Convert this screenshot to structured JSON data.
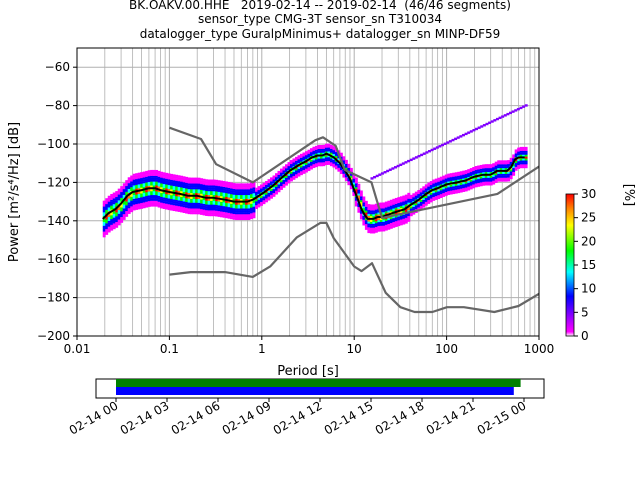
{
  "header": {
    "line1": "BK.OAKV.00.HHE   2019-02-14 -- 2019-02-14  (46/46 segments)",
    "line2": "sensor_type CMG-3T sensor_sn T310034",
    "line3": "datalogger_type GuralpMinimus+ datalogger_sn MINP-DF59"
  },
  "chart_data": {
    "type": "heatmap",
    "title": "BK.OAKV.00.HHE   2019-02-14 -- 2019-02-14  (46/46 segments)",
    "xlabel": "Period [s]",
    "ylabel": "Power [m²/s⁴/Hz] [dB]",
    "x_scale": "log",
    "xlim": [
      0.01,
      1000
    ],
    "ylim": [
      -200,
      -50
    ],
    "x_ticks": [
      0.01,
      0.1,
      1,
      10,
      100,
      1000
    ],
    "x_tick_labels": [
      "0.01",
      "0.1",
      "1",
      "10",
      "100",
      "1000"
    ],
    "y_ticks": [
      -200,
      -180,
      -160,
      -140,
      -120,
      -100,
      -80,
      -60
    ],
    "grid": true,
    "colorbar": {
      "label": "[%]",
      "min": 0,
      "max": 30,
      "ticks": [
        0,
        5,
        10,
        15,
        20,
        25,
        30
      ],
      "colormap": [
        "#ffffff",
        "#ff00ff",
        "#0000ff",
        "#00ffff",
        "#00ff00",
        "#ffff00",
        "#ff8000",
        "#ff0000"
      ]
    },
    "series": [
      {
        "kind": "mode",
        "color": "#000000",
        "x": [
          0.019,
          0.022,
          0.026,
          0.03,
          0.035,
          0.04,
          0.05,
          0.06,
          0.07,
          0.08,
          0.1,
          0.13,
          0.16,
          0.2,
          0.25,
          0.3,
          0.4,
          0.5,
          0.6,
          0.7,
          0.8,
          1.0,
          1.3,
          1.6,
          2.0,
          2.5,
          3.0,
          3.5,
          4.0,
          4.5,
          5.0,
          5.5,
          6.0,
          7.0,
          8.0,
          9.0,
          10,
          11,
          12,
          13,
          14,
          15,
          16,
          18,
          20,
          23,
          26,
          30,
          35,
          40,
          50,
          60,
          70,
          80,
          100,
          130,
          160,
          200,
          250,
          300,
          350,
          400,
          450,
          500,
          550,
          600,
          700
        ],
        "y": [
          -139,
          -136,
          -134,
          -131,
          -127,
          -125,
          -124,
          -123,
          -123,
          -124,
          -125,
          -126,
          -127,
          -127,
          -128,
          -128,
          -129,
          -130,
          -130,
          -130,
          -129,
          -126,
          -122,
          -118,
          -114,
          -111,
          -109,
          -107,
          -106,
          -106,
          -105,
          -106,
          -107,
          -110,
          -114,
          -118,
          -124,
          -129,
          -134,
          -137,
          -139,
          -139,
          -139,
          -138,
          -138,
          -137,
          -136,
          -135,
          -134,
          -132,
          -129,
          -126,
          -124,
          -123,
          -121,
          -120,
          -119,
          -117,
          -116,
          -116,
          -114,
          -114,
          -114,
          -112,
          -108,
          -107,
          -107
        ]
      },
      {
        "kind": "noise-model-high",
        "color": "#666666",
        "x": [
          0.1,
          0.22,
          0.32,
          0.8,
          3.8,
          4.6,
          6.3,
          7.9,
          15.4,
          20,
          354.8,
          10000
        ],
        "y": [
          -91.5,
          -97.4,
          -110.5,
          -120,
          -98,
          -96.5,
          -101,
          -113.5,
          -120,
          -138.5,
          -126,
          -80.1
        ]
      },
      {
        "kind": "noise-model-low",
        "color": "#666666",
        "x": [
          0.1,
          0.17,
          0.4,
          0.8,
          1.24,
          2.4,
          4.3,
          5.0,
          6.0,
          10.0,
          12.0,
          15.6,
          21.9,
          31.6,
          45.0,
          70.0,
          101.0,
          154.0,
          328.0,
          600.0,
          1000.0
        ],
        "y": [
          -168,
          -166.7,
          -166.7,
          -169.2,
          -163.7,
          -148.6,
          -141.1,
          -141.1,
          -149,
          -163.8,
          -166.2,
          -162.1,
          -177.5,
          -185,
          -187.5,
          -187.5,
          -185,
          -185,
          -187.5,
          -184.4,
          -178
        ]
      }
    ],
    "time_axis": {
      "tick_labels": [
        "02-14 00",
        "02-14 03",
        "02-14 06",
        "02-14 09",
        "02-14 12",
        "02-14 15",
        "02-14 18",
        "02-14 21",
        "02-15 00"
      ],
      "coverage": [
        {
          "color": "#008000",
          "start_hour": 0.0,
          "end_hour": 23.8
        },
        {
          "color": "#0000ff",
          "start_hour": 0.0,
          "end_hour": 23.4
        }
      ]
    }
  }
}
